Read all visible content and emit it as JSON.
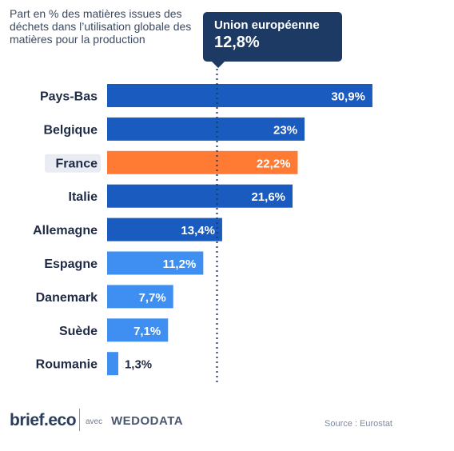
{
  "subtitle": "Part en % des matières issues des déchets dans l’utilisation globale des matières pour la production",
  "reference": {
    "label": "Union européenne",
    "value": 12.8,
    "display": "12,8%"
  },
  "chart_data": {
    "type": "bar",
    "orientation": "horizontal",
    "categories": [
      "Pays-Bas",
      "Belgique",
      "France",
      "Italie",
      "Allemagne",
      "Espagne",
      "Danemark",
      "Suède",
      "Roumanie"
    ],
    "values": [
      30.9,
      23,
      22.2,
      21.6,
      13.4,
      11.2,
      7.7,
      7.1,
      1.3
    ],
    "value_labels": [
      "30,9%",
      "23%",
      "22,2%",
      "21,6%",
      "13,4%",
      "11,2%",
      "7,7%",
      "7,1%",
      "1,3%"
    ],
    "highlight": "France",
    "xlim": [
      0,
      31
    ],
    "reference_line": 12.8,
    "colors": {
      "above_ref": "#1a5bbf",
      "below_ref": "#3f8ef2",
      "highlight": "#ff7a33",
      "highlight_label_bg": "#e9edf3",
      "reference": "#1c3a63"
    }
  },
  "footer": {
    "logo": "brief.eco",
    "with": "avec",
    "partner": "WEDODATA",
    "source": "Source : Eurostat"
  }
}
